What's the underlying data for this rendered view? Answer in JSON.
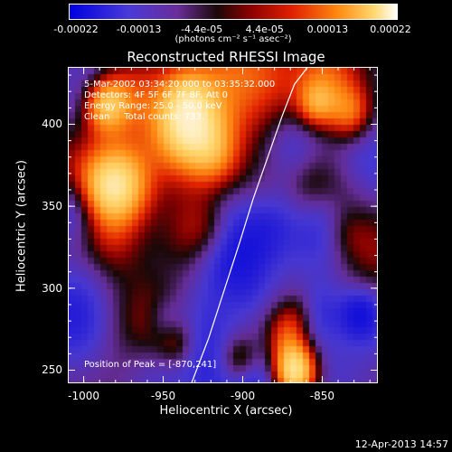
{
  "colorbar": {
    "tick_labels": [
      "-0.00022",
      "-0.00013",
      "-4.4e-05",
      "4.4e-05",
      "0.00013",
      "0.00022"
    ],
    "units": "(photons cm⁻² s⁻¹ asec⁻²)"
  },
  "title": "Reconstructed RHESSI Image",
  "info": {
    "time_range": "5-Mar-2002 03:34:20.000 to 03:35:32.000",
    "detectors": "Detectors: 4F 5F 6F 7F 8F, Att 0",
    "energy": "Energy Range: 25.0 - 50.0 keV",
    "clean": "Clean     Total counts: 733."
  },
  "peak": "Position of Peak = [-870,241]",
  "chart_data": {
    "type": "heatmap",
    "title": "Reconstructed RHESSI Image",
    "xlabel": "Heliocentric X (arcsec)",
    "ylabel": "Heliocentric Y (arcsec)",
    "xlim": [
      -1010,
      -815
    ],
    "ylim": [
      242,
      435
    ],
    "x_ticks": [
      -1000,
      -950,
      -900,
      -850
    ],
    "x_tick_labels": [
      "-1000",
      "-950",
      "-900",
      "-850"
    ],
    "y_ticks": [
      250,
      300,
      350,
      400
    ],
    "y_tick_labels": [
      "250",
      "300",
      "350",
      "400"
    ],
    "color_range": [
      -0.00022,
      0.00022
    ],
    "limb_curve": {
      "x": [
        -933,
        -922,
        -912,
        -902,
        -894,
        -885,
        -876,
        -868,
        -860
      ],
      "y": [
        242,
        270,
        300,
        330,
        355,
        380,
        405,
        425,
        435
      ]
    }
  },
  "footer": {
    "date": "12-Apr-2013 14:57"
  },
  "colors": {
    "background": "#000000",
    "text": "#ffffff"
  }
}
